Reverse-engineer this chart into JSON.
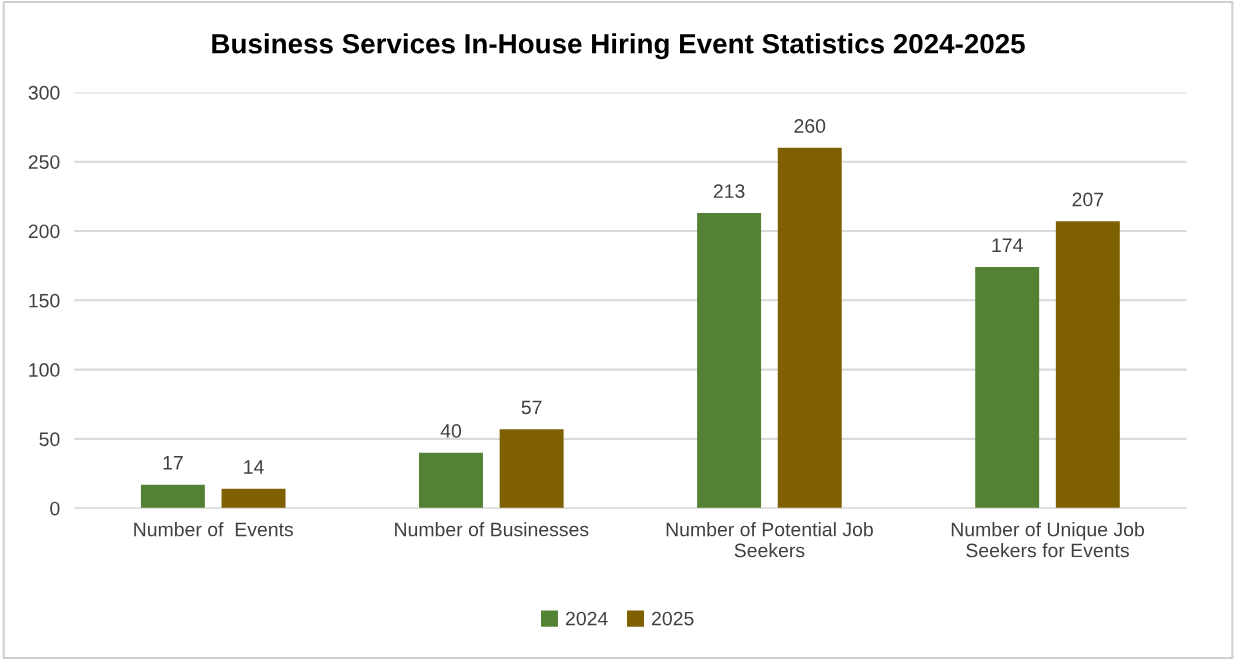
{
  "chart_data": {
    "type": "bar",
    "title": "Business Services In-House Hiring Event Statistics 2024-2025",
    "categories": [
      "Number of  Events",
      "Number of Businesses",
      "Number of Potential Job\nSeekers",
      "Number of Unique Job\nSeekers for Events"
    ],
    "series": [
      {
        "name": "2024",
        "color": "#548235",
        "values": [
          17,
          40,
          213,
          174
        ]
      },
      {
        "name": "2025",
        "color": "#7f6000",
        "values": [
          14,
          57,
          260,
          207
        ]
      }
    ],
    "ylim": [
      0,
      300
    ],
    "yticks": [
      0,
      50,
      100,
      150,
      200,
      250,
      300
    ],
    "grid": "y",
    "legend": "bottom",
    "data_labels": true
  }
}
